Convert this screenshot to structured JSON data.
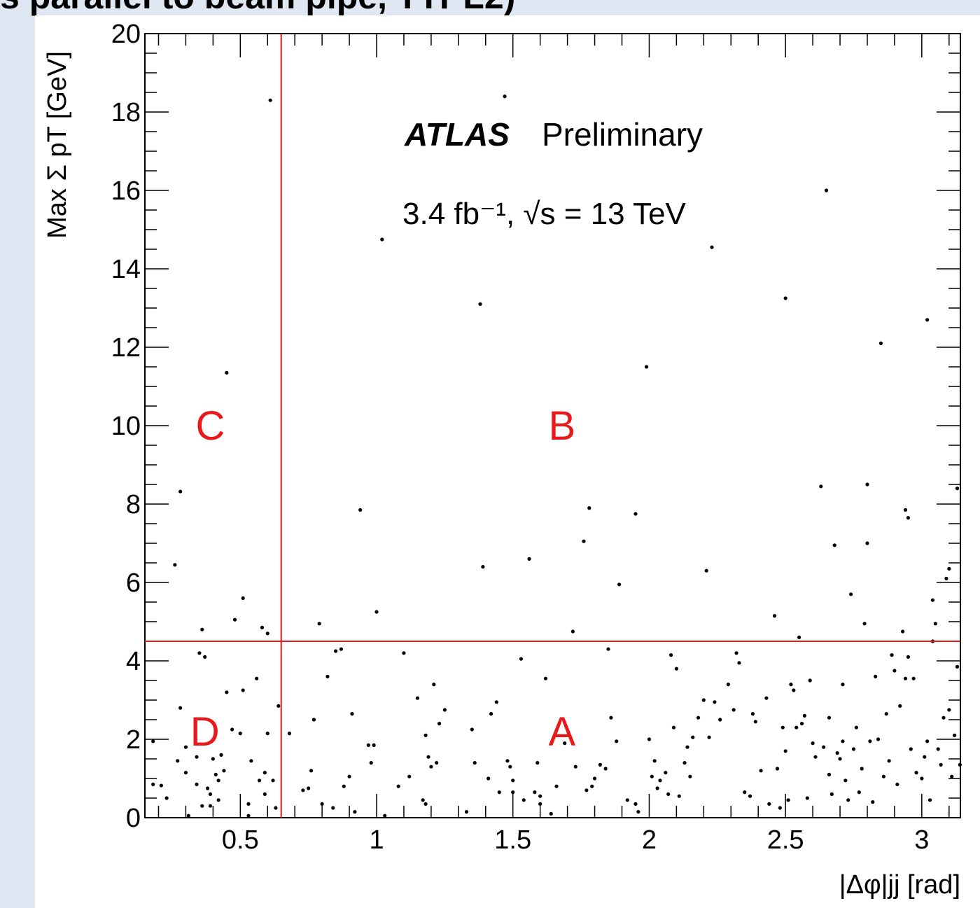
{
  "caption": "s parallel to beam pipe, TTPL2)",
  "chart_data": {
    "type": "scatter",
    "title": "",
    "experiment": "ATLAS",
    "label": "Preliminary",
    "luminosity_text": "3.4 fb⁻¹, √s = 13 TeV",
    "xlabel": "|Δφ|jj [rad]",
    "ylabel": "Max Σ pT [GeV]",
    "xlim": [
      0.15,
      3.14159
    ],
    "ylim": [
      0,
      20
    ],
    "x_ticks": [
      0.5,
      1,
      1.5,
      2,
      2.5,
      3
    ],
    "x_tick_labels": [
      "0.5",
      "1",
      "1.5",
      "2",
      "2.5",
      "3"
    ],
    "y_ticks": [
      0,
      2,
      4,
      6,
      8,
      10,
      12,
      14,
      16,
      18,
      20
    ],
    "y_tick_labels": [
      "0",
      "2",
      "4",
      "6",
      "8",
      "10",
      "12",
      "14",
      "16",
      "18",
      "20"
    ],
    "grid": false,
    "cuts": {
      "x": 0.65,
      "y": 4.5
    },
    "cut_color": "#e8191a",
    "regions": [
      {
        "label": "A",
        "x": 1.68,
        "y": 2.2
      },
      {
        "label": "B",
        "x": 1.68,
        "y": 10.0
      },
      {
        "label": "C",
        "x": 0.39,
        "y": 10.0
      },
      {
        "label": "D",
        "x": 0.37,
        "y": 2.2
      }
    ],
    "points": [
      [
        0.18,
        1.95
      ],
      [
        0.18,
        0.85
      ],
      [
        0.21,
        0.82
      ],
      [
        0.23,
        0.5
      ],
      [
        0.26,
        6.45
      ],
      [
        0.28,
        8.32
      ],
      [
        0.27,
        1.45
      ],
      [
        0.28,
        2.8
      ],
      [
        0.3,
        1.15
      ],
      [
        0.3,
        1.8
      ],
      [
        0.31,
        0.05
      ],
      [
        0.34,
        1.55
      ],
      [
        0.34,
        0.85
      ],
      [
        0.35,
        4.2
      ],
      [
        0.36,
        4.8
      ],
      [
        0.37,
        4.1
      ],
      [
        0.36,
        0.3
      ],
      [
        0.38,
        0.75
      ],
      [
        0.39,
        0.6
      ],
      [
        0.39,
        0.3
      ],
      [
        0.4,
        1.5
      ],
      [
        0.41,
        1.1
      ],
      [
        0.42,
        0.95
      ],
      [
        0.42,
        0.45
      ],
      [
        0.43,
        1.6
      ],
      [
        0.44,
        1.2
      ],
      [
        0.45,
        11.35
      ],
      [
        0.45,
        3.2
      ],
      [
        0.47,
        2.25
      ],
      [
        0.48,
        5.05
      ],
      [
        0.5,
        2.15
      ],
      [
        0.51,
        5.6
      ],
      [
        0.51,
        3.25
      ],
      [
        0.53,
        0.35
      ],
      [
        0.53,
        0.05
      ],
      [
        0.54,
        1.45
      ],
      [
        0.56,
        3.55
      ],
      [
        0.57,
        0.95
      ],
      [
        0.58,
        4.85
      ],
      [
        0.59,
        1.15
      ],
      [
        0.59,
        0.6
      ],
      [
        0.6,
        4.7
      ],
      [
        0.6,
        2.15
      ],
      [
        0.61,
        18.3
      ],
      [
        0.62,
        0.95
      ],
      [
        0.63,
        0.25
      ],
      [
        0.64,
        2.85
      ],
      [
        0.68,
        2.15
      ],
      [
        0.73,
        0.7
      ],
      [
        0.75,
        0.75
      ],
      [
        0.76,
        1.2
      ],
      [
        0.77,
        2.5
      ],
      [
        0.79,
        4.95
      ],
      [
        0.8,
        0.35
      ],
      [
        0.82,
        3.6
      ],
      [
        0.84,
        0.25
      ],
      [
        0.85,
        4.25
      ],
      [
        0.87,
        4.3
      ],
      [
        0.88,
        0.8
      ],
      [
        0.9,
        1.05
      ],
      [
        0.91,
        2.65
      ],
      [
        0.92,
        0.15
      ],
      [
        0.94,
        7.85
      ],
      [
        0.97,
        1.85
      ],
      [
        0.98,
        1.4
      ],
      [
        0.99,
        1.85
      ],
      [
        1.0,
        5.25
      ],
      [
        1.02,
        14.75
      ],
      [
        1.03,
        0.05
      ],
      [
        1.08,
        0.8
      ],
      [
        1.1,
        4.2
      ],
      [
        1.12,
        1.05
      ],
      [
        1.15,
        3.05
      ],
      [
        1.17,
        0.45
      ],
      [
        1.18,
        2.1
      ],
      [
        1.18,
        0.35
      ],
      [
        1.19,
        1.55
      ],
      [
        1.2,
        1.3
      ],
      [
        1.21,
        3.4
      ],
      [
        1.22,
        1.4
      ],
      [
        1.23,
        2.4
      ],
      [
        1.25,
        2.75
      ],
      [
        1.33,
        0.15
      ],
      [
        1.35,
        2.25
      ],
      [
        1.36,
        1.4
      ],
      [
        1.38,
        13.1
      ],
      [
        1.39,
        6.4
      ],
      [
        1.41,
        1.0
      ],
      [
        1.42,
        2.65
      ],
      [
        1.44,
        2.95
      ],
      [
        1.45,
        0.65
      ],
      [
        1.47,
        18.4
      ],
      [
        1.48,
        1.45
      ],
      [
        1.49,
        1.3
      ],
      [
        1.5,
        0.95
      ],
      [
        1.5,
        0.65
      ],
      [
        1.53,
        4.05
      ],
      [
        1.54,
        0.45
      ],
      [
        1.56,
        6.6
      ],
      [
        1.58,
        0.65
      ],
      [
        1.59,
        1.4
      ],
      [
        1.6,
        0.35
      ],
      [
        1.6,
        0.55
      ],
      [
        1.62,
        3.55
      ],
      [
        1.64,
        0.1
      ],
      [
        1.66,
        0.8
      ],
      [
        1.69,
        1.9
      ],
      [
        1.72,
        4.75
      ],
      [
        1.73,
        1.3
      ],
      [
        1.76,
        7.05
      ],
      [
        1.77,
        0.7
      ],
      [
        1.78,
        7.9
      ],
      [
        1.79,
        0.8
      ],
      [
        1.8,
        1.0
      ],
      [
        1.82,
        1.35
      ],
      [
        1.84,
        1.25
      ],
      [
        1.85,
        4.3
      ],
      [
        1.86,
        2.55
      ],
      [
        1.88,
        1.95
      ],
      [
        1.89,
        5.95
      ],
      [
        1.92,
        0.45
      ],
      [
        1.95,
        7.75
      ],
      [
        1.95,
        0.35
      ],
      [
        1.96,
        0.15
      ],
      [
        1.99,
        11.5
      ],
      [
        2.0,
        2.0
      ],
      [
        2.01,
        1.05
      ],
      [
        2.02,
        1.45
      ],
      [
        2.03,
        0.75
      ],
      [
        2.04,
        0.95
      ],
      [
        2.06,
        1.15
      ],
      [
        2.07,
        0.6
      ],
      [
        2.08,
        4.15
      ],
      [
        2.09,
        2.3
      ],
      [
        2.1,
        3.8
      ],
      [
        2.11,
        0.55
      ],
      [
        2.13,
        1.4
      ],
      [
        2.14,
        1.8
      ],
      [
        2.15,
        1.05
      ],
      [
        2.16,
        2.05
      ],
      [
        2.18,
        2.55
      ],
      [
        2.2,
        3.0
      ],
      [
        2.21,
        6.3
      ],
      [
        2.22,
        2.05
      ],
      [
        2.23,
        14.55
      ],
      [
        2.24,
        2.95
      ],
      [
        2.26,
        2.5
      ],
      [
        2.29,
        3.4
      ],
      [
        2.31,
        2.75
      ],
      [
        2.32,
        4.2
      ],
      [
        2.33,
        3.95
      ],
      [
        2.35,
        0.65
      ],
      [
        2.37,
        0.55
      ],
      [
        2.38,
        2.65
      ],
      [
        2.39,
        2.45
      ],
      [
        2.41,
        1.2
      ],
      [
        2.43,
        3.05
      ],
      [
        2.44,
        0.35
      ],
      [
        2.46,
        5.15
      ],
      [
        2.47,
        1.25
      ],
      [
        2.48,
        0.25
      ],
      [
        2.49,
        2.3
      ],
      [
        2.5,
        13.25
      ],
      [
        2.5,
        1.7
      ],
      [
        2.51,
        0.45
      ],
      [
        2.52,
        3.4
      ],
      [
        2.53,
        3.25
      ],
      [
        2.54,
        2.3
      ],
      [
        2.55,
        4.6
      ],
      [
        2.56,
        2.4
      ],
      [
        2.57,
        2.6
      ],
      [
        2.58,
        0.5
      ],
      [
        2.59,
        3.5
      ],
      [
        2.6,
        1.9
      ],
      [
        2.61,
        1.55
      ],
      [
        2.63,
        8.45
      ],
      [
        2.64,
        1.8
      ],
      [
        2.65,
        16.0
      ],
      [
        2.66,
        2.55
      ],
      [
        2.66,
        1.1
      ],
      [
        2.67,
        0.6
      ],
      [
        2.68,
        6.95
      ],
      [
        2.69,
        1.65
      ],
      [
        2.7,
        1.5
      ],
      [
        2.71,
        3.4
      ],
      [
        2.71,
        1.95
      ],
      [
        2.72,
        0.95
      ],
      [
        2.73,
        0.45
      ],
      [
        2.74,
        5.7
      ],
      [
        2.75,
        1.75
      ],
      [
        2.76,
        2.3
      ],
      [
        2.77,
        0.65
      ],
      [
        2.78,
        1.25
      ],
      [
        2.79,
        4.95
      ],
      [
        2.8,
        8.5
      ],
      [
        2.8,
        7.0
      ],
      [
        2.81,
        1.95
      ],
      [
        2.82,
        0.4
      ],
      [
        2.83,
        3.6
      ],
      [
        2.84,
        2.0
      ],
      [
        2.85,
        12.1
      ],
      [
        2.86,
        1.05
      ],
      [
        2.87,
        2.65
      ],
      [
        2.88,
        1.45
      ],
      [
        2.89,
        4.15
      ],
      [
        2.9,
        3.75
      ],
      [
        2.91,
        0.85
      ],
      [
        2.92,
        2.85
      ],
      [
        2.93,
        4.75
      ],
      [
        2.94,
        3.55
      ],
      [
        2.94,
        7.85
      ],
      [
        2.95,
        7.65
      ],
      [
        2.95,
        4.1
      ],
      [
        2.96,
        1.75
      ],
      [
        2.97,
        3.55
      ],
      [
        2.98,
        1.15
      ],
      [
        3.0,
        1.0
      ],
      [
        3.01,
        1.55
      ],
      [
        3.02,
        12.7
      ],
      [
        3.02,
        1.95
      ],
      [
        3.03,
        0.45
      ],
      [
        3.04,
        4.5
      ],
      [
        3.04,
        5.55
      ],
      [
        3.05,
        4.95
      ],
      [
        3.06,
        1.75
      ],
      [
        3.07,
        1.35
      ],
      [
        3.08,
        2.55
      ],
      [
        3.09,
        6.1
      ],
      [
        3.1,
        6.35
      ],
      [
        3.1,
        2.75
      ],
      [
        3.11,
        1.05
      ],
      [
        3.12,
        2.1
      ],
      [
        3.13,
        8.4
      ],
      [
        3.13,
        3.85
      ],
      [
        3.14,
        1.35
      ]
    ]
  }
}
